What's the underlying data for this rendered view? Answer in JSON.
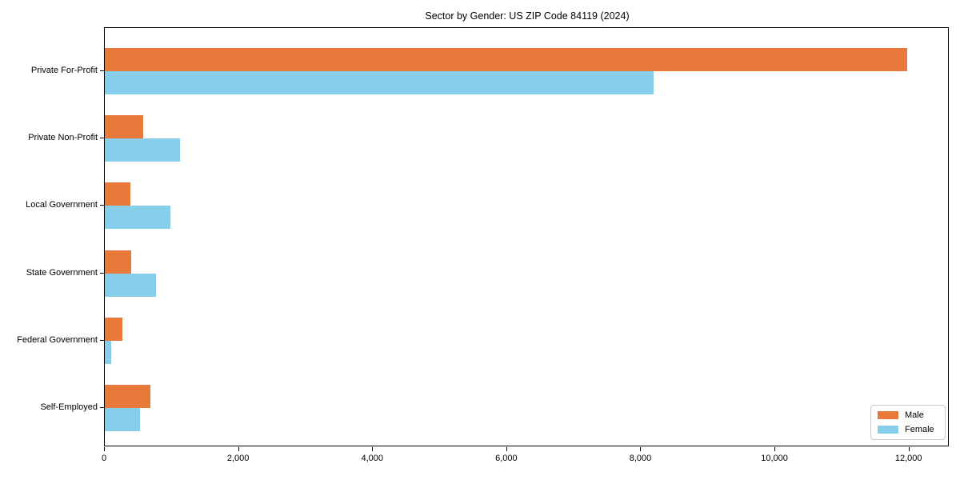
{
  "chart_data": {
    "type": "bar",
    "orientation": "horizontal",
    "title": "Sector by Gender: US ZIP Code 84119 (2024)",
    "categories": [
      "Private For-Profit",
      "Private Non-Profit",
      "Local Government",
      "State Government",
      "Federal Government",
      "Self-Employed"
    ],
    "series": [
      {
        "name": "Male",
        "color": "#e8793a",
        "values": [
          11970,
          570,
          380,
          395,
          260,
          680
        ]
      },
      {
        "name": "Female",
        "color": "#87ceeb",
        "values": [
          8190,
          1120,
          975,
          760,
          95,
          525
        ]
      }
    ],
    "xlabel": "",
    "ylabel": "",
    "xlim": [
      0,
      12600
    ],
    "x_ticks": [
      0,
      2000,
      4000,
      6000,
      8000,
      10000,
      12000
    ],
    "x_tick_labels": [
      "0",
      "2,000",
      "4,000",
      "6,000",
      "8,000",
      "10,000",
      "12,000"
    ],
    "grid": false,
    "legend": {
      "position": "lower right",
      "entries": [
        "Male",
        "Female"
      ]
    }
  }
}
